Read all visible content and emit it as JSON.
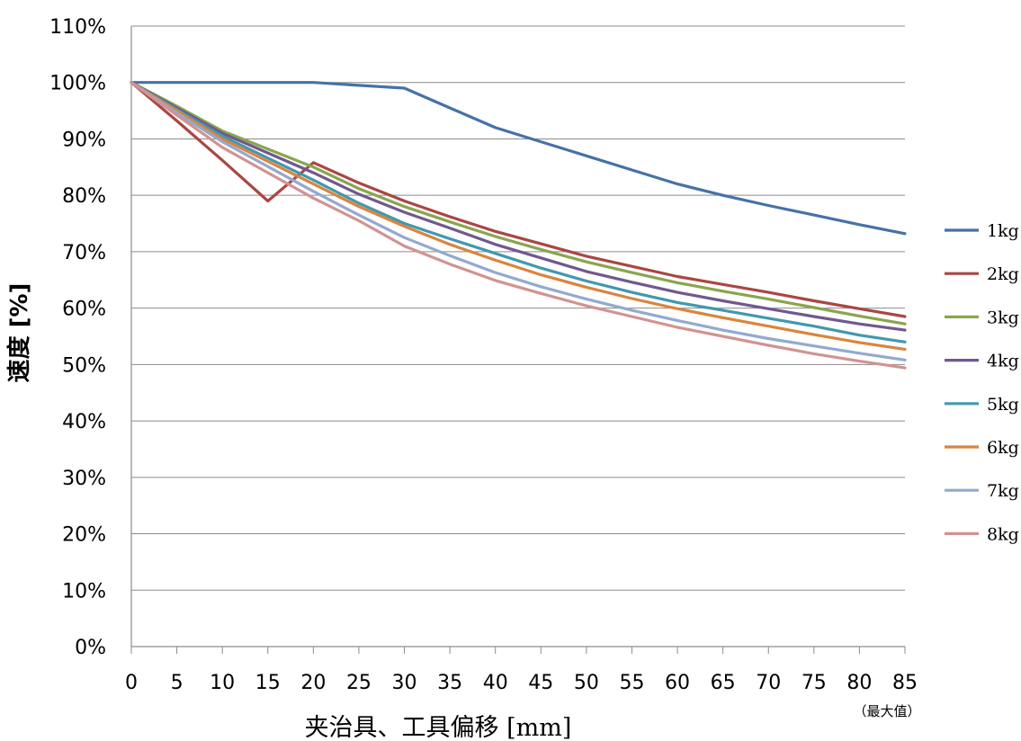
{
  "chart_data": {
    "type": "line",
    "title": "",
    "xlabel": "夹治具、工具偏移 [mm]",
    "ylabel": "速度 [%]",
    "x_max_note": "（最大值）",
    "x": [
      0,
      5,
      10,
      15,
      20,
      25,
      30,
      35,
      40,
      45,
      50,
      55,
      60,
      65,
      70,
      75,
      80,
      85
    ],
    "x_ticks": [
      "0",
      "5",
      "10",
      "15",
      "20",
      "25",
      "30",
      "35",
      "40",
      "45",
      "50",
      "55",
      "60",
      "65",
      "70",
      "75",
      "80",
      "85"
    ],
    "y_ticks": [
      "0%",
      "10%",
      "20%",
      "30%",
      "40%",
      "50%",
      "60%",
      "70%",
      "80%",
      "90%",
      "100%",
      "110%"
    ],
    "xlim": [
      0,
      85
    ],
    "ylim": [
      0,
      110
    ],
    "grid": "horizontal",
    "legend_position": "right",
    "series": [
      {
        "name": "1kg",
        "color": "#4572a7",
        "values": [
          100,
          100,
          100,
          100,
          100,
          99.5,
          99,
          95.5,
          92,
          89.5,
          87,
          84.5,
          82,
          80,
          78.2,
          76.5,
          74.8,
          73.2
        ]
      },
      {
        "name": "2kg",
        "color": "#aa4643",
        "values": [
          100,
          93.2,
          86.2,
          79,
          85.8,
          82.2,
          79,
          76.2,
          73.6,
          71.4,
          69.2,
          67.4,
          65.6,
          64.2,
          62.8,
          61.3,
          59.9,
          58.5
        ]
      },
      {
        "name": "3kg",
        "color": "#89a54e",
        "values": [
          100,
          95.8,
          91.4,
          88.2,
          85,
          81.2,
          78,
          75.3,
          72.7,
          70.4,
          68.2,
          66.3,
          64.5,
          63,
          61.6,
          60.1,
          58.6,
          57.2
        ]
      },
      {
        "name": "4kg",
        "color": "#71588f",
        "values": [
          100,
          95.5,
          91,
          87.5,
          84,
          80.2,
          77,
          74.2,
          71.3,
          68.9,
          66.5,
          64.6,
          62.8,
          61.3,
          59.9,
          58.5,
          57.2,
          56.1
        ]
      },
      {
        "name": "5kg",
        "color": "#4198af",
        "values": [
          100,
          95.2,
          90.5,
          86.6,
          82.7,
          78.6,
          75,
          72.3,
          69.7,
          67.1,
          64.8,
          62.8,
          61,
          59.6,
          58.2,
          56.8,
          55.2,
          54
        ]
      },
      {
        "name": "6kg",
        "color": "#db843d",
        "values": [
          100,
          95,
          90,
          86,
          82,
          78,
          74.5,
          71.3,
          68.5,
          65.9,
          63.7,
          61.7,
          59.9,
          58.3,
          56.8,
          55.3,
          53.9,
          52.7
        ]
      },
      {
        "name": "7kg",
        "color": "#93a9cf",
        "values": [
          100,
          94.6,
          89.5,
          85.1,
          80.7,
          76.5,
          72.5,
          69.3,
          66.3,
          63.8,
          61.6,
          59.6,
          57.8,
          56.1,
          54.6,
          53.3,
          52,
          50.8
        ]
      },
      {
        "name": "8kg",
        "color": "#d19392",
        "values": [
          100,
          94.2,
          88.5,
          84,
          79.5,
          75.5,
          71,
          67.8,
          64.9,
          62.6,
          60.4,
          58.5,
          56.6,
          55,
          53.4,
          51.9,
          50.6,
          49.4
        ]
      }
    ]
  }
}
